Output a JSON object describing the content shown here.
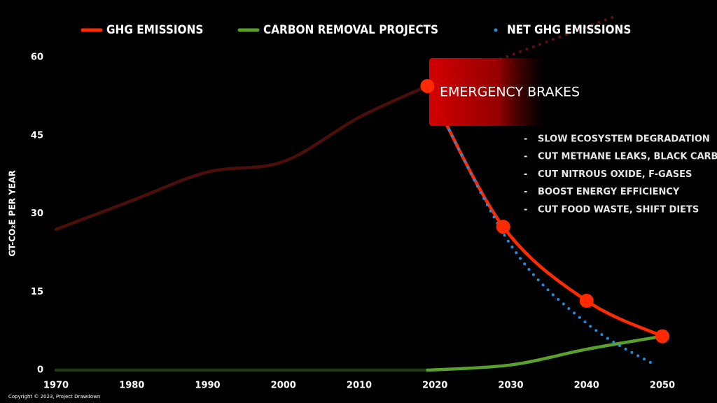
{
  "chart_data": {
    "type": "line",
    "y_label": "GT-CO₂E PER YEAR",
    "annotation": {
      "title": "EMERGENCY BRAKES",
      "items": [
        "SLOW ECOSYSTEM DEGRADATION",
        "CUT METHANE LEAKS, BLACK CARBON",
        "CUT NITROUS OXIDE, F-GASES",
        "BOOST ENERGY EFFICIENCY",
        "CUT FOOD WASTE, SHIFT DIETS"
      ]
    },
    "copyright": "Copyright © 2023, Project Drawdown",
    "xlim": [
      1970,
      2050
    ],
    "xticks": [
      1970,
      1980,
      1990,
      2000,
      2010,
      2020,
      2030,
      2040,
      2050
    ],
    "ylim": [
      0,
      60
    ],
    "yticks": [
      0,
      15,
      30,
      45,
      60
    ],
    "highlight_from": 2019,
    "series": [
      {
        "name": "GHG EMISSIONS",
        "color": "#ff2a00",
        "dim_color": "#4a0f08",
        "style": "solid",
        "markers": true,
        "x": [
          1970,
          1980,
          1990,
          2000,
          2010,
          2019,
          2029,
          2040,
          2050
        ],
        "values": [
          27,
          32.5,
          38,
          40,
          48.5,
          54.5,
          27.5,
          13.3,
          6.5
        ]
      },
      {
        "name": "CARBON REMOVAL PROJECTS",
        "color": "#5aa02c",
        "dim_color": "#1d3a10",
        "style": "solid",
        "markers": false,
        "x": [
          1970,
          2019,
          2030,
          2040,
          2050
        ],
        "values": [
          0,
          0,
          1,
          4,
          6.5
        ]
      },
      {
        "name": "NET GHG EMISSIONS",
        "color": "#1f8fe0",
        "style": "dotted",
        "markers": false,
        "x": [
          2019,
          2030,
          2040,
          2049
        ],
        "values": [
          54.5,
          24,
          9,
          1
        ]
      },
      {
        "color": "#5a120a",
        "style": "dotted",
        "markers": false,
        "x": [
          2020,
          2044
        ],
        "values": [
          55,
          68
        ]
      }
    ]
  }
}
